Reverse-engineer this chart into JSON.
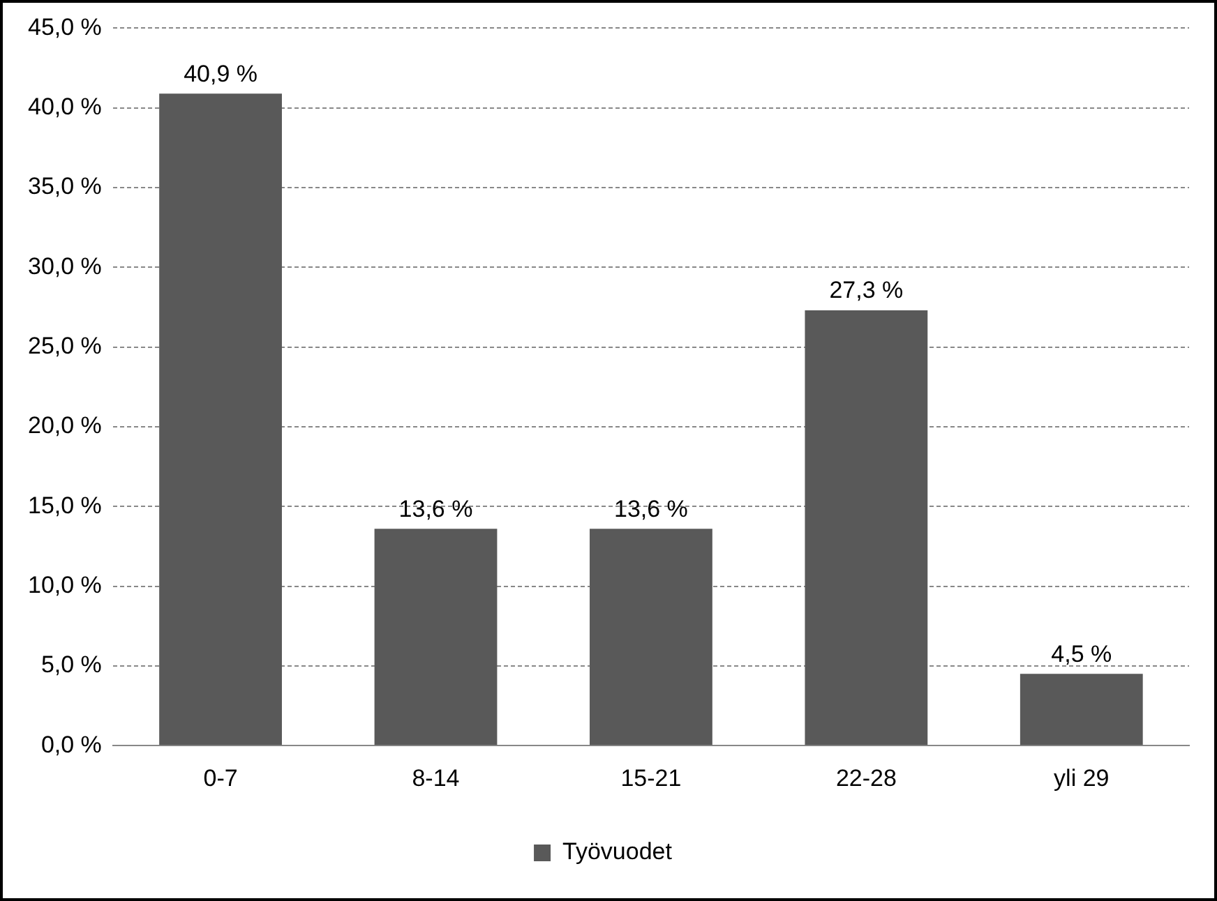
{
  "chart_data": {
    "type": "bar",
    "categories": [
      "0-7",
      "8-14",
      "15-21",
      "22-28",
      "yli 29"
    ],
    "series": [
      {
        "name": "Työvuodet",
        "color": "#595959",
        "values": [
          40.9,
          13.6,
          13.6,
          27.3,
          4.5
        ],
        "value_labels": [
          "40,9 %",
          "13,6 %",
          "13,6 %",
          "27,3 %",
          "4,5 %"
        ]
      }
    ],
    "ylim": [
      0,
      45
    ],
    "yticks": [
      {
        "value": 0,
        "label": "0,0 %"
      },
      {
        "value": 5,
        "label": "5,0 %"
      },
      {
        "value": 10,
        "label": "10,0 %"
      },
      {
        "value": 15,
        "label": "15,0 %"
      },
      {
        "value": 20,
        "label": "20,0 %"
      },
      {
        "value": 25,
        "label": "25,0 %"
      },
      {
        "value": 30,
        "label": "30,0 %"
      },
      {
        "value": 35,
        "label": "35,0 %"
      },
      {
        "value": 40,
        "label": "40,0 %"
      },
      {
        "value": 45,
        "label": "45,0 %"
      }
    ],
    "grid": "y",
    "legend": "bottom"
  }
}
